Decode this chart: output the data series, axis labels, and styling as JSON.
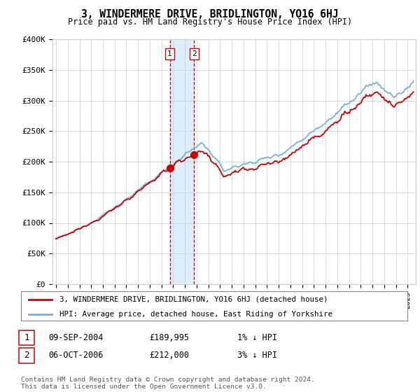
{
  "title": "3, WINDERMERE DRIVE, BRIDLINGTON, YO16 6HJ",
  "subtitle": "Price paid vs. HM Land Registry's House Price Index (HPI)",
  "legend_line1": "3, WINDERMERE DRIVE, BRIDLINGTON, YO16 6HJ (detached house)",
  "legend_line2": "HPI: Average price, detached house, East Riding of Yorkshire",
  "sale1_date": "09-SEP-2004",
  "sale1_price": 189995,
  "sale1_label": "1% ↓ HPI",
  "sale2_date": "06-OCT-2006",
  "sale2_price": 212000,
  "sale2_label": "3% ↓ HPI",
  "footnote": "Contains HM Land Registry data © Crown copyright and database right 2024.\nThis data is licensed under the Open Government Licence v3.0.",
  "hpi_color": "#7ab0d4",
  "price_color": "#cc0000",
  "sale_vline_color": "#cc0000",
  "highlight_color": "#ddeeff",
  "ylim_min": 0,
  "ylim_max": 400000,
  "yticks": [
    0,
    50000,
    100000,
    150000,
    200000,
    250000,
    300000,
    350000,
    400000
  ],
  "ytick_labels": [
    "£0",
    "£50K",
    "£100K",
    "£150K",
    "£200K",
    "£250K",
    "£300K",
    "£350K",
    "£400K"
  ],
  "background_color": "#ffffff",
  "grid_color": "#cccccc",
  "start_year": 1995,
  "end_year": 2025,
  "t_sale1": 2004.708,
  "t_sale2": 2006.792
}
